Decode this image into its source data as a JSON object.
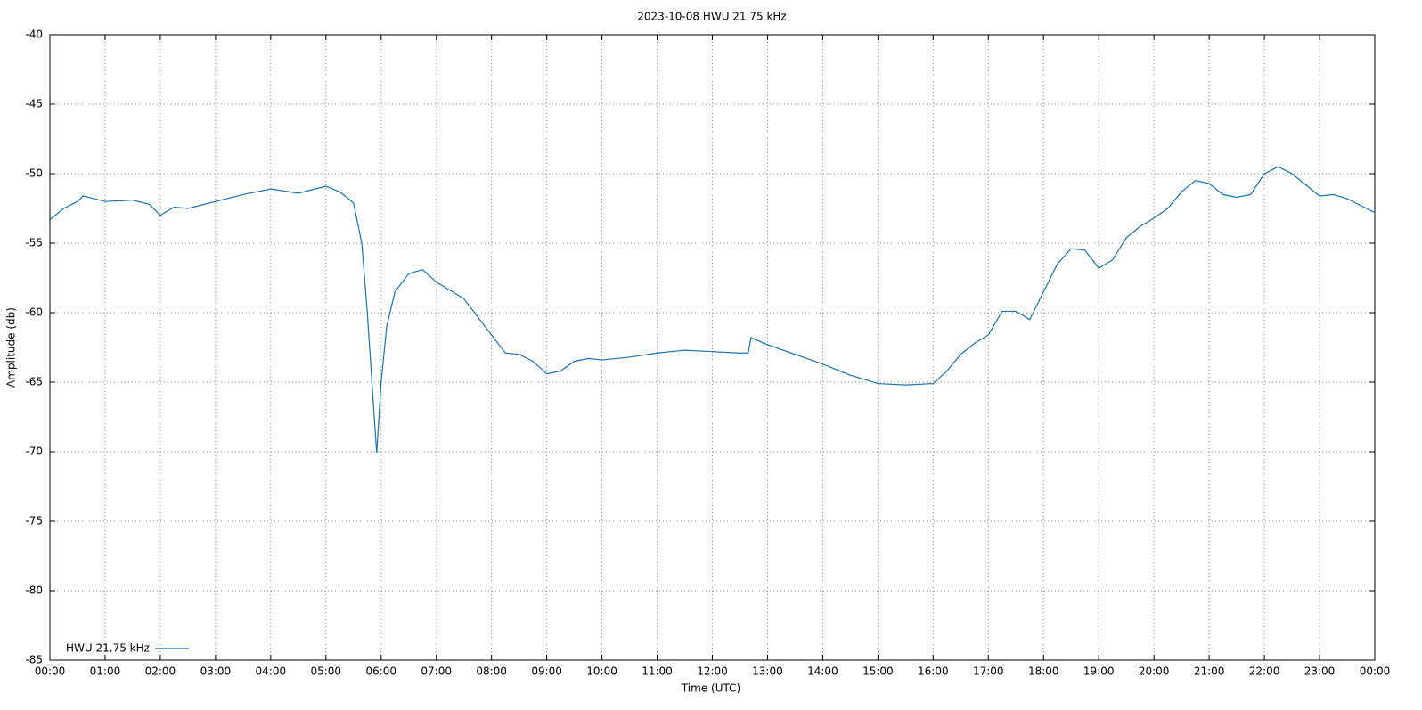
{
  "chart_data": {
    "type": "line",
    "title": "2023-10-08 HWU 21.75 kHz",
    "x_label": "Time (UTC)",
    "y_label": "Amplitude (db)",
    "x": [
      0,
      0.25,
      0.5,
      0.6,
      1,
      1.5,
      1.8,
      2,
      2.25,
      2.5,
      3,
      3.5,
      4,
      4.5,
      5,
      5.25,
      5.5,
      5.65,
      5.75,
      5.85,
      5.92,
      6,
      6.1,
      6.25,
      6.5,
      6.75,
      7,
      7.5,
      8,
      8.25,
      8.5,
      8.75,
      9,
      9.25,
      9.5,
      9.75,
      10,
      10.5,
      11,
      11.5,
      12,
      12.5,
      12.65,
      12.7,
      13,
      13.5,
      14,
      14.5,
      15,
      15.5,
      16,
      16.25,
      16.5,
      16.75,
      17,
      17.25,
      17.5,
      17.75,
      18,
      18.25,
      18.5,
      18.75,
      19,
      19.25,
      19.5,
      19.75,
      20,
      20.25,
      20.5,
      20.75,
      21,
      21.25,
      21.5,
      21.75,
      22,
      22.25,
      22.5,
      22.75,
      23,
      23.25,
      23.5,
      23.75,
      24
    ],
    "series": [
      {
        "name": "HWU 21.75 kHz",
        "color": "#1a72b0",
        "values": [
          -53.3,
          -52.5,
          -52.0,
          -51.6,
          -52.0,
          -51.9,
          -52.2,
          -53.0,
          -52.4,
          -52.5,
          -52.0,
          -51.5,
          -51.1,
          -51.4,
          -50.9,
          -51.3,
          -52.1,
          -55,
          -60,
          -66,
          -70.1,
          -65,
          -61,
          -58.5,
          -57.2,
          -56.9,
          -57.8,
          -59.0,
          -61.6,
          -62.9,
          -63.0,
          -63.5,
          -64.4,
          -64.2,
          -63.5,
          -63.3,
          -63.4,
          -63.2,
          -62.9,
          -62.7,
          -62.8,
          -62.9,
          -62.9,
          -61.8,
          -62.3,
          -63.0,
          -63.7,
          -64.5,
          -65.1,
          -65.2,
          -65.1,
          -64.2,
          -63.0,
          -62.2,
          -61.6,
          -59.9,
          -59.9,
          -60.5,
          -58.5,
          -56.5,
          -55.4,
          -55.5,
          -56.8,
          -56.2,
          -54.6,
          -53.8,
          -53.2,
          -52.5,
          -51.3,
          -50.5,
          -50.7,
          -51.5,
          -51.7,
          -51.5,
          -50.0,
          -49.5,
          -50.0,
          -50.8,
          -51.6,
          -51.5,
          -51.8,
          -52.3,
          -52.8
        ]
      }
    ],
    "xlim": [
      0,
      24
    ],
    "xticks": [
      {
        "value": 0,
        "label": "00:00"
      },
      {
        "value": 1,
        "label": "01:00"
      },
      {
        "value": 2,
        "label": "02:00"
      },
      {
        "value": 3,
        "label": "03:00"
      },
      {
        "value": 4,
        "label": "04:00"
      },
      {
        "value": 5,
        "label": "05:00"
      },
      {
        "value": 6,
        "label": "06:00"
      },
      {
        "value": 7,
        "label": "07:00"
      },
      {
        "value": 8,
        "label": "08:00"
      },
      {
        "value": 9,
        "label": "09:00"
      },
      {
        "value": 10,
        "label": "10:00"
      },
      {
        "value": 11,
        "label": "11:00"
      },
      {
        "value": 12,
        "label": "12:00"
      },
      {
        "value": 13,
        "label": "13:00"
      },
      {
        "value": 14,
        "label": "14:00"
      },
      {
        "value": 15,
        "label": "15:00"
      },
      {
        "value": 16,
        "label": "16:00"
      },
      {
        "value": 17,
        "label": "17:00"
      },
      {
        "value": 18,
        "label": "18:00"
      },
      {
        "value": 19,
        "label": "19:00"
      },
      {
        "value": 20,
        "label": "20:00"
      },
      {
        "value": 21,
        "label": "21:00"
      },
      {
        "value": 22,
        "label": "22:00"
      },
      {
        "value": 23,
        "label": "23:00"
      },
      {
        "value": 24,
        "label": "00:00"
      }
    ],
    "ylim": [
      -85,
      -40
    ],
    "yticks": [
      -85,
      -80,
      -75,
      -70,
      -65,
      -60,
      -55,
      -50,
      -45,
      -40
    ],
    "grid": true,
    "legend": "lower left"
  }
}
